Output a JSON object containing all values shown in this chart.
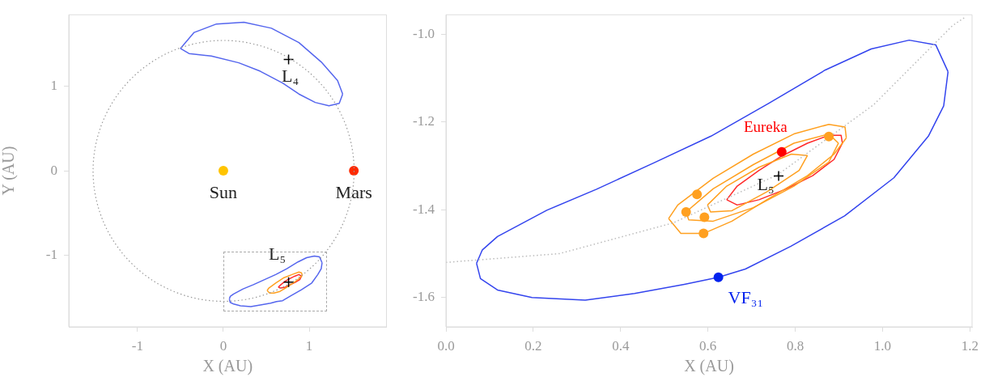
{
  "chart_data": [
    {
      "type": "line",
      "xlabel": "X (AU)",
      "ylabel": "Y (AU)",
      "xlim": [
        -1.8,
        1.9
      ],
      "ylim": [
        -1.85,
        1.85
      ],
      "xticks": [
        -1,
        0,
        1
      ],
      "yticks": [
        -1,
        0,
        1
      ],
      "grid": false,
      "legend": false,
      "series": [
        {
          "type": "line",
          "line_style": "solid",
          "marker": "none",
          "color": "#5566ee",
          "x": [
            -0.5,
            -0.34,
            -0.08,
            0.24,
            0.56,
            0.88,
            1.14,
            1.33,
            1.39
          ],
          "values": [
            1.45,
            1.64,
            1.74,
            1.76,
            1.69,
            1.52,
            1.29,
            1.07,
            0.91
          ]
        },
        {
          "type": "line",
          "line_style": "solid",
          "marker": "none",
          "color": "#5566ee",
          "x": [
            -0.5,
            -0.4,
            -0.14,
            0.18,
            0.43,
            0.69,
            0.88,
            1.07,
            1.23,
            1.35,
            1.39
          ],
          "values": [
            1.45,
            1.39,
            1.36,
            1.28,
            1.18,
            1.04,
            0.91,
            0.81,
            0.77,
            0.8,
            0.91
          ]
        },
        {
          "type": "line",
          "line_style": "solid",
          "marker": "none",
          "color": "#5566ee",
          "x": [
            0.07,
            0.08,
            0.12,
            0.23,
            0.35,
            0.48,
            0.61,
            0.74,
            0.87,
            0.97,
            1.06,
            1.12,
            1.15
          ],
          "values": [
            -1.52,
            -1.49,
            -1.46,
            -1.4,
            -1.35,
            -1.29,
            -1.23,
            -1.16,
            -1.08,
            -1.03,
            -1.01,
            -1.02,
            -1.09
          ]
        },
        {
          "type": "line",
          "line_style": "solid",
          "marker": "none",
          "color": "#5566ee",
          "x": [
            0.07,
            0.08,
            0.12,
            0.2,
            0.32,
            0.43,
            0.55,
            0.62,
            0.69,
            0.79,
            0.91,
            1.03,
            1.1,
            1.14,
            1.15
          ],
          "values": [
            -1.52,
            -1.56,
            -1.58,
            -1.6,
            -1.61,
            -1.59,
            -1.57,
            -1.55,
            -1.54,
            -1.48,
            -1.41,
            -1.33,
            -1.23,
            -1.16,
            -1.09
          ]
        },
        {
          "type": "line",
          "line_style": "solid",
          "marker": "none",
          "color": "#ffa020",
          "x": [
            0.51,
            0.53,
            0.61,
            0.7,
            0.8,
            0.88,
            0.91,
            0.92
          ],
          "values": [
            -1.42,
            -1.39,
            -1.33,
            -1.27,
            -1.23,
            -1.2,
            -1.21,
            -1.24
          ]
        },
        {
          "type": "line",
          "line_style": "solid",
          "marker": "none",
          "color": "#ffa020",
          "x": [
            0.51,
            0.54,
            0.59,
            0.66,
            0.74,
            0.83,
            0.89,
            0.92
          ],
          "values": [
            -1.42,
            -1.45,
            -1.45,
            -1.43,
            -1.38,
            -1.32,
            -1.27,
            -1.24
          ]
        },
        {
          "type": "line",
          "line_style": "solid",
          "marker": "none",
          "color": "#ff2a2a",
          "x": [
            0.64,
            0.67,
            0.72,
            0.77,
            0.83,
            0.88,
            0.91
          ],
          "values": [
            -1.38,
            -1.35,
            -1.31,
            -1.28,
            -1.25,
            -1.23,
            -1.25
          ]
        },
        {
          "type": "line",
          "line_style": "solid",
          "marker": "none",
          "color": "#ff2a2a",
          "x": [
            0.64,
            0.67,
            0.72,
            0.78,
            0.84,
            0.89,
            0.91
          ],
          "values": [
            -1.38,
            -1.39,
            -1.38,
            -1.35,
            -1.32,
            -1.29,
            -1.25
          ]
        },
        {
          "type": "scatter",
          "marker": "circle",
          "color": "#ffc400",
          "x": [
            0
          ],
          "values": [
            0
          ]
        },
        {
          "type": "scatter",
          "marker": "circle",
          "color": "#ff2a00",
          "x": [
            1.52
          ],
          "values": [
            0
          ]
        },
        {
          "type": "scatter",
          "marker": "cross",
          "color": "#000000",
          "x": [
            0.76,
            0.76
          ],
          "values": [
            1.32,
            -1.32
          ]
        }
      ],
      "annotations": [
        {
          "text": "Sun",
          "x": 0,
          "y": 0
        },
        {
          "text": "Mars",
          "x": 1.52,
          "y": 0
        },
        {
          "text": "L₄",
          "x": 0.76,
          "y": 1.32
        },
        {
          "text": "L₅",
          "x": 0.76,
          "y": -1.32
        }
      ]
    },
    {
      "type": "line",
      "xlabel": "X (AU)",
      "xlim": [
        0,
        1.205
      ],
      "ylim": [
        -1.667,
        -0.955
      ],
      "xticks": [
        {
          "value": 0,
          "label": "0.0"
        },
        0.2,
        0.4,
        0.6,
        0.8,
        {
          "value": 1,
          "label": "1.0"
        },
        1.2
      ],
      "yticks": [
        {
          "value": -1,
          "label": "-1.0"
        },
        -1.2,
        -1.4,
        -1.6
      ],
      "grid": false,
      "legend": false,
      "series": [
        {
          "type": "line",
          "line_style": "dotted",
          "marker": "none",
          "color": "#bbbbbb",
          "x": [
            0,
            0.26,
            0.52,
            0.76,
            0.98,
            1.16,
            1.19
          ],
          "values": [
            -1.52,
            -1.5,
            -1.43,
            -1.32,
            -1.16,
            -0.98,
            -0.96
          ]
        },
        {
          "type": "line",
          "line_style": "solid",
          "marker": "none",
          "color": "#3344ee",
          "x": [
            0.07,
            0.083,
            0.118,
            0.231,
            0.345,
            0.476,
            0.607,
            0.738,
            0.869,
            0.974,
            1.061,
            1.122,
            1.15
          ],
          "values": [
            -1.522,
            -1.492,
            -1.461,
            -1.401,
            -1.353,
            -1.293,
            -1.232,
            -1.158,
            -1.081,
            -1.033,
            -1.013,
            -1.024,
            -1.085
          ]
        },
        {
          "type": "line",
          "line_style": "solid",
          "marker": "none",
          "color": "#3344ee",
          "x": [
            0.07,
            0.079,
            0.118,
            0.197,
            0.319,
            0.432,
            0.546,
            0.624,
            0.686,
            0.79,
            0.913,
            1.026,
            1.105,
            1.14,
            1.15
          ],
          "values": [
            -1.522,
            -1.557,
            -1.583,
            -1.6,
            -1.606,
            -1.591,
            -1.57,
            -1.554,
            -1.535,
            -1.483,
            -1.414,
            -1.327,
            -1.232,
            -1.163,
            -1.085
          ]
        },
        {
          "type": "line",
          "line_style": "solid",
          "marker": "none",
          "color": "#ffa020",
          "x": [
            0.51,
            0.531,
            0.612,
            0.704,
            0.797,
            0.877,
            0.914,
            0.917
          ],
          "values": [
            -1.42,
            -1.389,
            -1.328,
            -1.273,
            -1.227,
            -1.205,
            -1.211,
            -1.236
          ]
        },
        {
          "type": "line",
          "line_style": "solid",
          "marker": "none",
          "color": "#ffa020",
          "x": [
            0.51,
            0.538,
            0.59,
            0.655,
            0.735,
            0.828,
            0.889,
            0.917
          ],
          "values": [
            -1.42,
            -1.454,
            -1.454,
            -1.426,
            -1.377,
            -1.322,
            -1.273,
            -1.236
          ]
        },
        {
          "type": "line",
          "line_style": "solid",
          "marker": "none",
          "color": "#ffa020",
          "x": [
            0.55,
            0.612,
            0.704,
            0.797,
            0.877,
            0.899
          ],
          "values": [
            -1.405,
            -1.352,
            -1.297,
            -1.248,
            -1.227,
            -1.248
          ]
        },
        {
          "type": "line",
          "line_style": "solid",
          "marker": "none",
          "color": "#ffa020",
          "x": [
            0.55,
            0.556,
            0.612,
            0.704,
            0.797,
            0.877,
            0.899
          ],
          "values": [
            -1.405,
            -1.423,
            -1.426,
            -1.395,
            -1.346,
            -1.291,
            -1.248
          ]
        },
        {
          "type": "line",
          "line_style": "solid",
          "marker": "none",
          "color": "#ffa020",
          "x": [
            0.599,
            0.643,
            0.717,
            0.791,
            0.828
          ],
          "values": [
            -1.389,
            -1.346,
            -1.303,
            -1.273,
            -1.276
          ]
        },
        {
          "type": "line",
          "line_style": "solid",
          "marker": "none",
          "color": "#ffa020",
          "x": [
            0.599,
            0.606,
            0.655,
            0.735,
            0.809,
            0.828
          ],
          "values": [
            -1.389,
            -1.405,
            -1.402,
            -1.359,
            -1.31,
            -1.276
          ]
        },
        {
          "type": "line",
          "line_style": "solid",
          "marker": "none",
          "color": "#ff2a2a",
          "x": [
            0.643,
            0.667,
            0.717,
            0.766,
            0.828,
            0.877,
            0.905,
            0.908
          ],
          "values": [
            -1.377,
            -1.346,
            -1.31,
            -1.279,
            -1.248,
            -1.23,
            -1.23,
            -1.248
          ]
        },
        {
          "type": "line",
          "line_style": "solid",
          "marker": "none",
          "color": "#ff2a2a",
          "x": [
            0.643,
            0.667,
            0.717,
            0.778,
            0.84,
            0.889,
            0.908
          ],
          "values": [
            -1.377,
            -1.389,
            -1.377,
            -1.353,
            -1.322,
            -1.285,
            -1.248
          ]
        },
        {
          "type": "scatter",
          "marker": "circle",
          "color": "#ffa020",
          "x": [
            0.55,
            0.59,
            0.877,
            0.575,
            0.592
          ],
          "values": [
            -1.405,
            -1.454,
            -1.233,
            -1.365,
            -1.417
          ]
        },
        {
          "type": "scatter",
          "marker": "circle",
          "name": "Eureka",
          "color": "#ff0000",
          "x": [
            0.769
          ],
          "values": [
            -1.268
          ]
        },
        {
          "type": "scatter",
          "marker": "circle",
          "name": "VF₃₁",
          "color": "#0022ee",
          "x": [
            0.624
          ],
          "values": [
            -1.554
          ]
        },
        {
          "type": "scatter",
          "marker": "cross",
          "color": "#000000",
          "x": [
            0.762
          ],
          "values": [
            -1.323
          ]
        }
      ],
      "annotations": [
        {
          "text": "L₅",
          "x": 0.762,
          "y": -1.323
        }
      ]
    }
  ]
}
